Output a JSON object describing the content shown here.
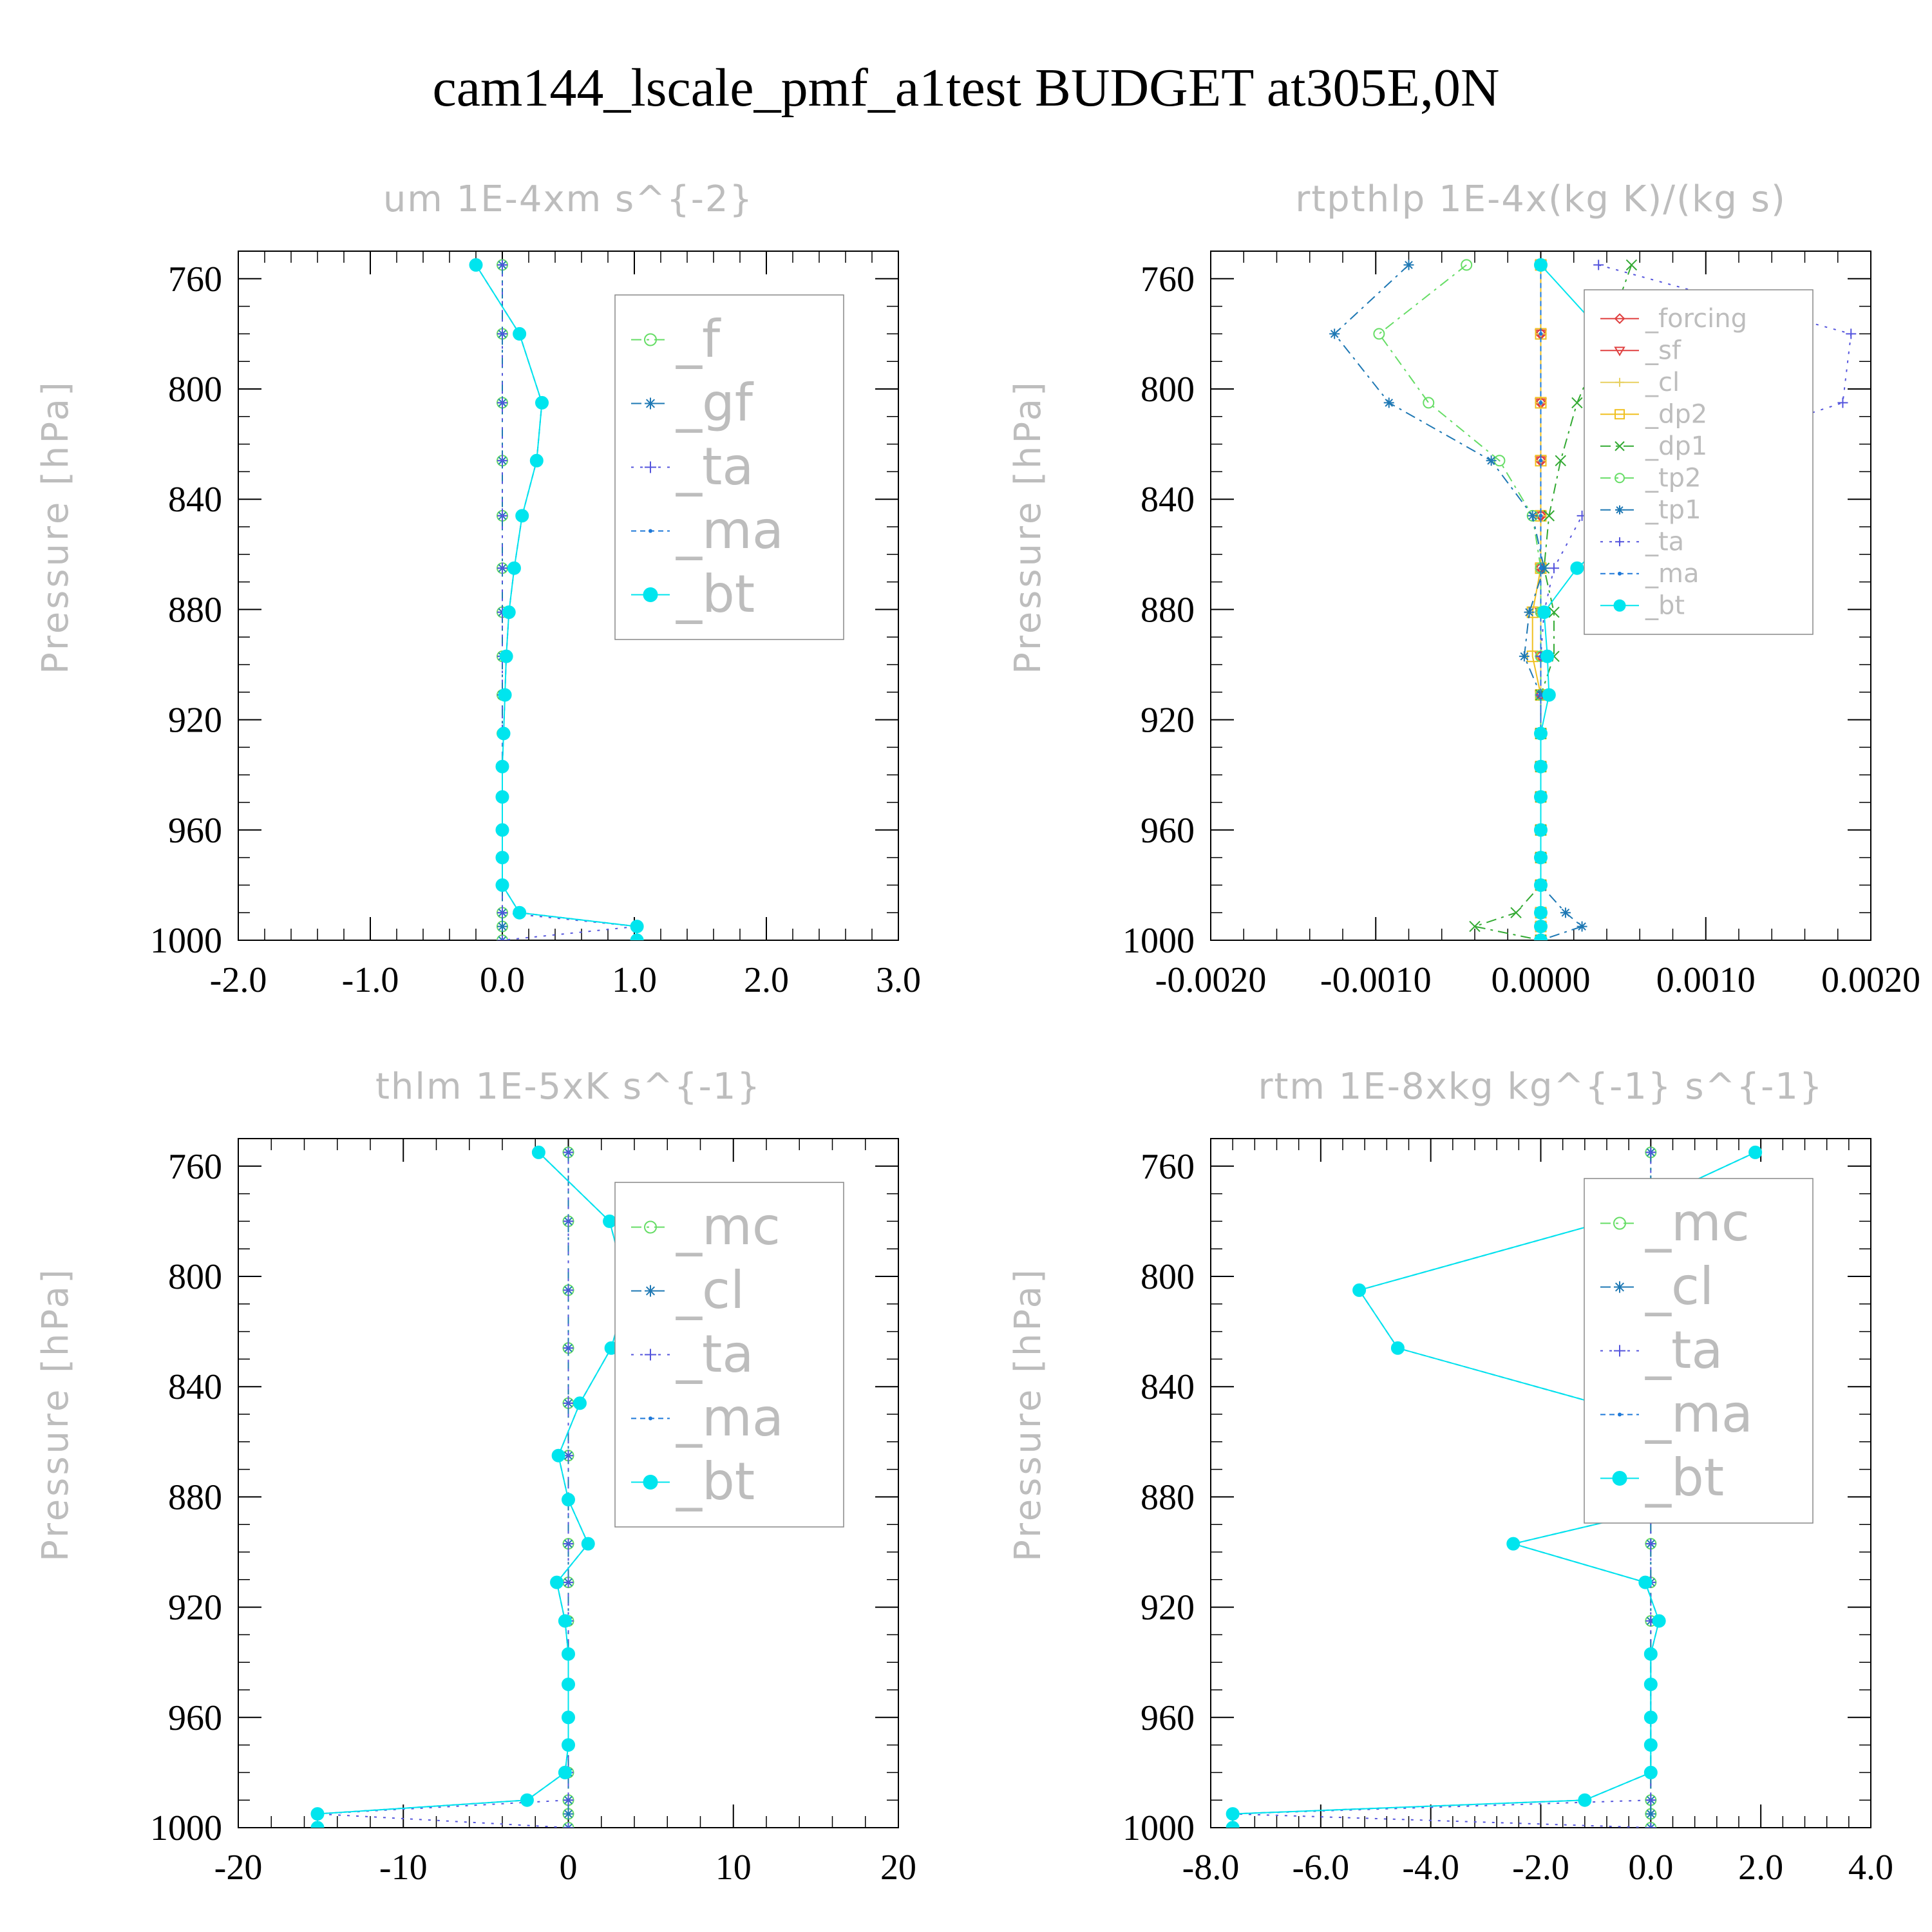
{
  "title": "cam144_lscale_pmf_a1test  BUDGET at305E,0N",
  "chart_data": [
    {
      "type": "line",
      "title": "um  1E-4xm s^{-2}",
      "xlabel": "",
      "ylabel": "Pressure [hPa]",
      "xlim": [
        -2.0,
        3.0
      ],
      "ylim": [
        750,
        1000
      ],
      "y_inverted": true,
      "xticks": [
        "-2.0",
        "-1.0",
        "0.0",
        "1.0",
        "2.0",
        "3.0"
      ],
      "yticks": [
        "760",
        "800",
        "840",
        "880",
        "920",
        "960",
        "1000"
      ],
      "grid": false,
      "legend_position": "top-right",
      "legend_font": 80,
      "pressure": [
        755,
        780,
        805,
        826,
        846,
        865,
        881,
        897,
        911,
        925,
        937,
        948,
        960,
        970,
        980,
        990,
        995,
        1000
      ],
      "series": [
        {
          "name": "_f",
          "color": "#66dd66",
          "marker": "circle",
          "dash": "16 8 4 8",
          "values": [
            0,
            0,
            0,
            0,
            0,
            0,
            0,
            0,
            0,
            0,
            0,
            0,
            0,
            0,
            0,
            0,
            0,
            0
          ]
        },
        {
          "name": "_gf",
          "color": "#1e78b4",
          "marker": "asterisk",
          "dash": "16 8 4 8",
          "values": [
            0,
            0,
            0,
            0,
            0,
            0,
            0,
            0,
            0,
            0,
            0,
            0,
            0,
            0,
            0,
            0,
            0,
            0
          ]
        },
        {
          "name": "_ta",
          "color": "#5555dd",
          "marker": "plus",
          "dash": "4 10",
          "values": [
            0,
            0,
            0,
            0,
            0,
            0,
            0,
            0,
            0,
            0,
            0,
            0,
            0,
            0,
            0,
            0,
            1.02,
            0
          ]
        },
        {
          "name": "_ma",
          "color": "#1e78d8",
          "marker": "dot",
          "dash": "8 6",
          "values": [
            -0.2,
            0.13,
            0.3,
            0.26,
            0.15,
            0.09,
            0.05,
            0.03,
            0.02,
            0.01,
            0,
            0,
            0,
            0,
            0,
            0.13,
            1.02,
            1.02
          ]
        },
        {
          "name": "_bt",
          "color": "#00e5ee",
          "marker": "filled",
          "dash": "",
          "values": [
            -0.2,
            0.13,
            0.3,
            0.26,
            0.15,
            0.09,
            0.05,
            0.03,
            0.02,
            0.01,
            0,
            0,
            0,
            0,
            0,
            0.13,
            1.02,
            1.02
          ]
        }
      ]
    },
    {
      "type": "line",
      "title": "rtpthlp  1E-4x(kg K)/(kg s)",
      "xlabel": "",
      "ylabel": "Pressure [hPa]",
      "xlim": [
        -0.002,
        0.002
      ],
      "ylim": [
        750,
        1000
      ],
      "y_inverted": true,
      "xticks": [
        "-0.0020",
        "-0.0010",
        "0.0000",
        "0.0010",
        "0.0020"
      ],
      "yticks": [
        "760",
        "800",
        "840",
        "880",
        "920",
        "960",
        "1000"
      ],
      "grid": false,
      "legend_position": "top-right",
      "legend_font": 40,
      "pressure": [
        755,
        780,
        805,
        826,
        846,
        865,
        881,
        897,
        911,
        925,
        937,
        948,
        960,
        970,
        980,
        990,
        995,
        1000
      ],
      "series": [
        {
          "name": "_forcing",
          "color": "#e04040",
          "marker": "diamond",
          "dash": "",
          "values": [
            0,
            0,
            0,
            0,
            0,
            0,
            0,
            0,
            0,
            0,
            0,
            0,
            0,
            0,
            0,
            0,
            0,
            0
          ]
        },
        {
          "name": "_sf",
          "color": "#e04040",
          "marker": "triangle",
          "dash": "",
          "values": [
            0,
            0,
            0,
            0,
            0,
            0,
            0,
            0,
            0,
            0,
            0,
            0,
            0,
            0,
            0,
            0,
            0,
            0
          ]
        },
        {
          "name": "_cl",
          "color": "#e8d060",
          "marker": "plus",
          "dash": "",
          "values": [
            0,
            0,
            0,
            0,
            0,
            0,
            0,
            0,
            0,
            0,
            0,
            0,
            0,
            0,
            0,
            0,
            0,
            0
          ]
        },
        {
          "name": "_dp2",
          "color": "#f0c020",
          "marker": "square",
          "dash": "",
          "values": [
            0,
            0,
            0,
            0,
            0,
            0,
            -5e-05,
            -5e-05,
            0,
            0,
            0,
            0,
            0,
            0,
            0,
            0,
            0,
            0
          ]
        },
        {
          "name": "_dp1",
          "color": "#33aa33",
          "marker": "cross",
          "dash": "16 8 4 8",
          "values": [
            0.00055,
            0.0004,
            0.00022,
            0.00012,
            5e-05,
            2e-05,
            8e-05,
            8e-05,
            0,
            0,
            0,
            0,
            0,
            0,
            0,
            -0.00015,
            -0.0004,
            0
          ]
        },
        {
          "name": "_tp2",
          "color": "#66dd66",
          "marker": "circle",
          "dash": "16 8 4 8",
          "values": [
            -0.00045,
            -0.00098,
            -0.00068,
            -0.00025,
            -5e-05,
            0,
            0,
            0,
            0,
            0,
            0,
            0,
            0,
            0,
            0,
            0,
            0,
            0
          ]
        },
        {
          "name": "_tp1",
          "color": "#1e78b4",
          "marker": "asterisk",
          "dash": "16 8 4 8",
          "values": [
            -0.0008,
            -0.00125,
            -0.00092,
            -0.0003,
            -5e-05,
            2e-05,
            -7e-05,
            -0.0001,
            0,
            0,
            0,
            0,
            0,
            0,
            0,
            0.00015,
            0.00025,
            0
          ]
        },
        {
          "name": "_ta",
          "color": "#5555dd",
          "marker": "plus",
          "dash": "4 10",
          "values": [
            0.00035,
            0.00188,
            0.00183,
            0.00075,
            0.00025,
            8e-05,
            2e-05,
            0,
            0,
            0,
            0,
            0,
            0,
            0,
            0,
            0,
            0,
            0
          ]
        },
        {
          "name": "_ma",
          "color": "#1e78d8",
          "marker": "dot",
          "dash": "8 6",
          "values": [
            0,
            0,
            0,
            0,
            0,
            0,
            0,
            0,
            0,
            0,
            0,
            0,
            0,
            0,
            0,
            0,
            0,
            0
          ]
        },
        {
          "name": "_bt",
          "color": "#00e5ee",
          "marker": "filled",
          "dash": "",
          "values": [
            0,
            0.00038,
            0.00078,
            0.00082,
            0.00058,
            0.00022,
            2e-05,
            4e-05,
            5e-05,
            0,
            0,
            0,
            0,
            0,
            0,
            0,
            0,
            0
          ]
        }
      ]
    },
    {
      "type": "line",
      "title": "thlm  1E-5xK s^{-1}",
      "xlabel": "",
      "ylabel": "Pressure [hPa]",
      "xlim": [
        -20,
        20
      ],
      "ylim": [
        750,
        1000
      ],
      "y_inverted": true,
      "xticks": [
        "-20",
        "-10",
        "0",
        "10",
        "20"
      ],
      "yticks": [
        "760",
        "800",
        "840",
        "880",
        "920",
        "960",
        "1000"
      ],
      "grid": false,
      "legend_position": "top-right",
      "legend_font": 80,
      "pressure": [
        755,
        780,
        805,
        826,
        846,
        865,
        881,
        897,
        911,
        925,
        937,
        948,
        960,
        970,
        980,
        990,
        995,
        1000
      ],
      "series": [
        {
          "name": "_mc",
          "color": "#66dd66",
          "marker": "circle",
          "dash": "16 8 4 8",
          "values": [
            0,
            0,
            0,
            0,
            0,
            0,
            0,
            0,
            0,
            0,
            0,
            0,
            0,
            0,
            0,
            0,
            0,
            0
          ]
        },
        {
          "name": "_cl",
          "color": "#1e78b4",
          "marker": "asterisk",
          "dash": "16 8 4 8",
          "values": [
            0,
            0,
            0,
            0,
            0,
            0,
            0,
            0,
            0,
            0,
            0,
            0,
            0,
            0,
            0,
            0,
            0,
            0
          ]
        },
        {
          "name": "_ta",
          "color": "#5555dd",
          "marker": "plus",
          "dash": "4 10",
          "values": [
            0,
            0,
            0,
            0,
            0,
            0,
            0,
            0,
            0,
            0,
            0,
            0,
            0,
            0,
            0,
            0,
            -15.2,
            0
          ]
        },
        {
          "name": "_ma",
          "color": "#1e78d8",
          "marker": "dot",
          "dash": "8 6",
          "values": [
            -1.8,
            2.5,
            3.6,
            2.6,
            0.7,
            -0.6,
            0,
            1.2,
            -0.7,
            -0.2,
            0,
            0,
            0,
            0,
            -0.2,
            -2.5,
            -15.2,
            -15.2
          ]
        },
        {
          "name": "_bt",
          "color": "#00e5ee",
          "marker": "filled",
          "dash": "",
          "values": [
            -1.8,
            2.5,
            3.6,
            2.6,
            0.7,
            -0.6,
            0,
            1.2,
            -0.7,
            -0.2,
            0,
            0,
            0,
            0,
            -0.2,
            -2.5,
            -15.2,
            -15.2
          ]
        }
      ]
    },
    {
      "type": "line",
      "title": "rtm  1E-8xkg kg^{-1} s^{-1}",
      "xlabel": "",
      "ylabel": "Pressure [hPa]",
      "xlim": [
        -8.0,
        4.0
      ],
      "ylim": [
        750,
        1000
      ],
      "y_inverted": true,
      "xticks": [
        "-8.0",
        "-6.0",
        "-4.0",
        "-2.0",
        "0.0",
        "2.0",
        "4.0"
      ],
      "yticks": [
        "760",
        "800",
        "840",
        "880",
        "920",
        "960",
        "1000"
      ],
      "grid": false,
      "legend_position": "top-right",
      "legend_font": 80,
      "pressure": [
        755,
        780,
        805,
        826,
        846,
        865,
        881,
        897,
        911,
        925,
        937,
        948,
        960,
        970,
        980,
        990,
        995,
        1000
      ],
      "series": [
        {
          "name": "_mc",
          "color": "#66dd66",
          "marker": "circle",
          "dash": "16 8 4 8",
          "values": [
            0,
            0,
            0,
            0,
            0,
            0,
            0,
            0,
            0,
            0,
            0,
            0,
            0,
            0,
            0,
            0,
            0,
            0
          ]
        },
        {
          "name": "_cl",
          "color": "#1e78b4",
          "marker": "asterisk",
          "dash": "16 8 4 8",
          "values": [
            0,
            0,
            0,
            0,
            0,
            0,
            0,
            0,
            0,
            0,
            0,
            0,
            0,
            0,
            0,
            0,
            0,
            0
          ]
        },
        {
          "name": "_ta",
          "color": "#5555dd",
          "marker": "plus",
          "dash": "4 10",
          "values": [
            0,
            0,
            0,
            0,
            0,
            0,
            0,
            0,
            0,
            0,
            0,
            0,
            0,
            0,
            0,
            0,
            -7.6,
            0
          ]
        },
        {
          "name": "_ma",
          "color": "#1e78d8",
          "marker": "dot",
          "dash": "8 6",
          "values": [
            1.9,
            -0.8,
            -5.3,
            -4.6,
            -1.0,
            1.9,
            0.9,
            -2.5,
            -0.1,
            0.15,
            0,
            0,
            0,
            0,
            0,
            -1.2,
            -7.6,
            -7.6
          ]
        },
        {
          "name": "_bt",
          "color": "#00e5ee",
          "marker": "filled",
          "dash": "",
          "values": [
            1.9,
            -0.8,
            -5.3,
            -4.6,
            -1.0,
            1.9,
            0.9,
            -2.5,
            -0.1,
            0.15,
            0,
            0,
            0,
            0,
            0,
            -1.2,
            -7.6,
            -7.6
          ]
        }
      ]
    }
  ]
}
